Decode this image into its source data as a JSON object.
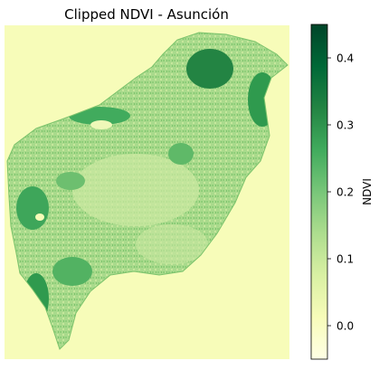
{
  "title": "Clipped NDVI - Asunción",
  "colorbar": {
    "label": "NDVI",
    "colormap": "YlGn",
    "min": -0.05,
    "max": 0.45,
    "ticks": [
      {
        "value": 0.0,
        "label": "0.0"
      },
      {
        "value": 0.1,
        "label": "0.1"
      },
      {
        "value": 0.2,
        "label": "0.2"
      },
      {
        "value": 0.3,
        "label": "0.3"
      },
      {
        "value": 0.4,
        "label": "0.4"
      }
    ],
    "colors": [
      "#ffffe5",
      "#f7fcb9",
      "#d9f0a3",
      "#addd8e",
      "#78c679",
      "#41ab5d",
      "#238443",
      "#006837",
      "#004529"
    ]
  },
  "map": {
    "background_color": "#f7fcb9",
    "city_fill": "#a6d88a"
  }
}
